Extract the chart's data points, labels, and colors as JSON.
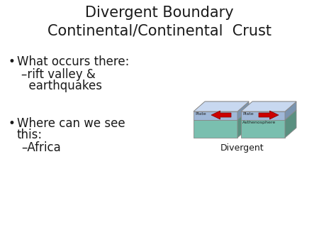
{
  "title_line1": "Divergent Boundary",
  "title_line2": "Continental/Continental  Crust",
  "bullet1": "What occurs there:",
  "sub1a": "–rift valley &",
  "sub1b": "  earthquakes",
  "bullet2": "Where can we see",
  "bullet2b": "this:",
  "sub2": "–Africa",
  "diagram_label": "Divergent",
  "bg_color": "#ffffff",
  "text_color": "#1a1a1a",
  "title_fontsize": 15,
  "body_fontsize": 12,
  "sub_fontsize": 12,
  "diagram_label_fontsize": 9,
  "plate_top_color": "#c8d8f0",
  "plate_top_side_color": "#9ab0cc",
  "plate_label_color": "#a0b8d8",
  "plate_label_side_color": "#7a94b0",
  "asthen_color": "#7abfaf",
  "asthen_side_color": "#5a9080",
  "arrow_color": "#cc0000",
  "edge_color": "#888888"
}
